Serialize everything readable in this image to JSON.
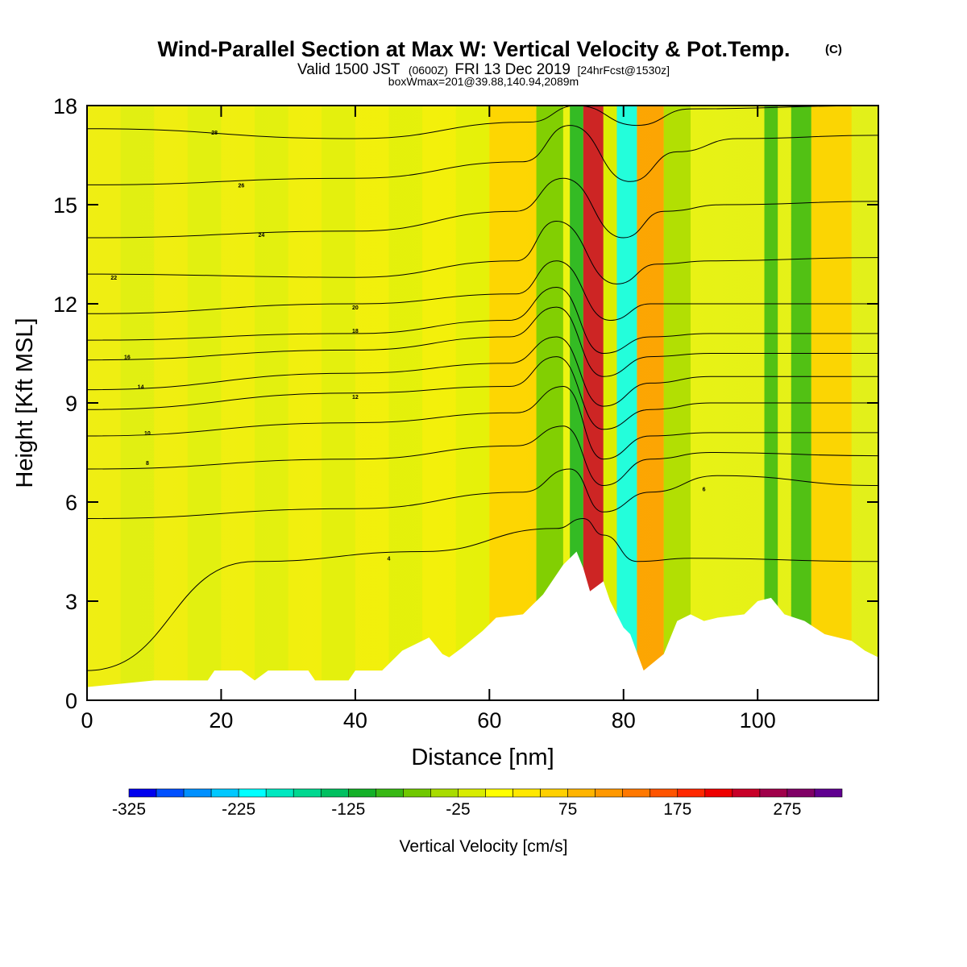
{
  "header": {
    "title": "Wind-Parallel Section at Max W: Vertical Velocity & Pot.Temp.",
    "copyright": "(C)",
    "subtitle_a": "Valid 1500 JST",
    "subtitle_b": "(0600Z)",
    "subtitle_c": "FRI 13 Dec 2019",
    "subtitle_d": "[24hrFcst@1530z]",
    "subtitle_line3": "boxWmax=201@39.88,140.94,2089m"
  },
  "chart_data": {
    "type": "heatmap",
    "title": "Wind-Parallel Section at Max W: Vertical Velocity & Pot.Temp.",
    "xlabel": "Distance [nm]",
    "ylabel": "Height [Kft MSL]",
    "xlim": [
      0,
      118
    ],
    "ylim": [
      0,
      18
    ],
    "x_ticks": [
      "0",
      "20",
      "40",
      "60",
      "80",
      "100"
    ],
    "y_ticks": [
      "0",
      "3",
      "6",
      "9",
      "12",
      "15",
      "18"
    ],
    "x_tick_values": [
      0,
      20,
      40,
      60,
      80,
      100
    ],
    "y_tick_values": [
      0,
      3,
      6,
      9,
      12,
      15,
      18
    ],
    "colorbar": {
      "label": "Vertical Velocity [cm/s]",
      "min": -325,
      "max": 325,
      "step": 25,
      "tick_labels": [
        "-325",
        "-225",
        "-125",
        "-25",
        "75",
        "175",
        "275"
      ],
      "tick_values": [
        -325,
        -225,
        -125,
        -25,
        75,
        175,
        275
      ],
      "colors": [
        "#0000ee",
        "#0050ff",
        "#0090ff",
        "#00c8ff",
        "#00ffff",
        "#00e8c0",
        "#00d890",
        "#00c060",
        "#14b028",
        "#38b814",
        "#70c800",
        "#a8dc00",
        "#d8ec00",
        "#ffff00",
        "#ffe800",
        "#ffd000",
        "#ffb400",
        "#ff9800",
        "#ff7800",
        "#ff5400",
        "#ff2800",
        "#ee0000",
        "#c80028",
        "#a0004a",
        "#800066",
        "#600090"
      ]
    },
    "terrain": [
      [
        0,
        0.4
      ],
      [
        10,
        0.6
      ],
      [
        18,
        0.6
      ],
      [
        19,
        0.9
      ],
      [
        23,
        0.9
      ],
      [
        25,
        0.6
      ],
      [
        27,
        0.9
      ],
      [
        33,
        0.9
      ],
      [
        34,
        0.6
      ],
      [
        39,
        0.6
      ],
      [
        40,
        0.9
      ],
      [
        44,
        0.9
      ],
      [
        47,
        1.5
      ],
      [
        48,
        1.6
      ],
      [
        51,
        1.9
      ],
      [
        53,
        1.4
      ],
      [
        54,
        1.3
      ],
      [
        56,
        1.6
      ],
      [
        59,
        2.1
      ],
      [
        61,
        2.5
      ],
      [
        65,
        2.6
      ],
      [
        68,
        3.2
      ],
      [
        71,
        4.1
      ],
      [
        73,
        4.5
      ],
      [
        74,
        4.0
      ],
      [
        75,
        3.3
      ],
      [
        77,
        3.6
      ],
      [
        78,
        3.0
      ],
      [
        79,
        2.6
      ],
      [
        80,
        2.2
      ],
      [
        81,
        2.0
      ],
      [
        83,
        0.9
      ],
      [
        86,
        1.4
      ],
      [
        88,
        2.4
      ],
      [
        90,
        2.6
      ],
      [
        92,
        2.4
      ],
      [
        94,
        2.5
      ],
      [
        98,
        2.6
      ],
      [
        100,
        3.0
      ],
      [
        102,
        3.1
      ],
      [
        104,
        2.6
      ],
      [
        107,
        2.4
      ],
      [
        110,
        2.0
      ],
      [
        114,
        1.8
      ],
      [
        116,
        1.5
      ],
      [
        118,
        1.3
      ]
    ],
    "theta_contours": [
      {
        "label": "4",
        "levels": [
          [
            0,
            0.9
          ],
          [
            25,
            4.2
          ],
          [
            50,
            4.5
          ],
          [
            70,
            5.2
          ],
          [
            74,
            5.5
          ],
          [
            77,
            5.0
          ],
          [
            82,
            4.2
          ],
          [
            90,
            4.3
          ],
          [
            118,
            4.2
          ]
        ],
        "label_at": [
          45,
          4.3
        ]
      },
      {
        "label": "6",
        "levels": [
          [
            0,
            5.5
          ],
          [
            40,
            5.8
          ],
          [
            65,
            6.3
          ],
          [
            72,
            7.0
          ],
          [
            77,
            5.7
          ],
          [
            84,
            6.3
          ],
          [
            94,
            6.8
          ],
          [
            118,
            6.5
          ]
        ],
        "label_at": [
          92,
          6.4
        ]
      },
      {
        "label": "8",
        "levels": [
          [
            0,
            7.0
          ],
          [
            40,
            7.3
          ],
          [
            64,
            7.7
          ],
          [
            71,
            8.3
          ],
          [
            77,
            6.5
          ],
          [
            84,
            7.3
          ],
          [
            93,
            7.5
          ],
          [
            118,
            7.4
          ]
        ],
        "label_at": [
          9,
          7.2
        ]
      },
      {
        "label": "10",
        "levels": [
          [
            0,
            8.0
          ],
          [
            40,
            8.4
          ],
          [
            64,
            8.7
          ],
          [
            71,
            9.5
          ],
          [
            77,
            7.3
          ],
          [
            84,
            8.0
          ],
          [
            93,
            8.1
          ],
          [
            118,
            8.1
          ]
        ],
        "label_at": [
          9,
          8.1
        ]
      },
      {
        "label": "12",
        "levels": [
          [
            0,
            8.8
          ],
          [
            40,
            9.3
          ],
          [
            63,
            9.5
          ],
          [
            70,
            10.4
          ],
          [
            77,
            8.2
          ],
          [
            84,
            8.8
          ],
          [
            93,
            9.0
          ],
          [
            118,
            9.0
          ]
        ],
        "label_at": [
          40,
          9.2
        ]
      },
      {
        "label": "14",
        "levels": [
          [
            0,
            9.4
          ],
          [
            40,
            9.9
          ],
          [
            63,
            10.2
          ],
          [
            70,
            11.0
          ],
          [
            77,
            8.9
          ],
          [
            84,
            9.6
          ],
          [
            93,
            9.8
          ],
          [
            118,
            9.8
          ]
        ],
        "label_at": [
          8,
          9.5
        ]
      },
      {
        "label": "16",
        "levels": [
          [
            0,
            10.3
          ],
          [
            40,
            10.6
          ],
          [
            63,
            11.0
          ],
          [
            70,
            11.9
          ],
          [
            77,
            9.8
          ],
          [
            84,
            10.4
          ],
          [
            93,
            10.5
          ],
          [
            118,
            10.5
          ]
        ],
        "label_at": [
          6,
          10.4
        ]
      },
      {
        "label": "18",
        "levels": [
          [
            0,
            10.9
          ],
          [
            40,
            11.1
          ],
          [
            63,
            11.5
          ],
          [
            70,
            12.5
          ],
          [
            77,
            10.5
          ],
          [
            84,
            11.0
          ],
          [
            93,
            11.1
          ],
          [
            118,
            11.1
          ]
        ],
        "label_at": [
          40,
          11.2
        ]
      },
      {
        "label": "20",
        "levels": [
          [
            0,
            11.7
          ],
          [
            40,
            12.0
          ],
          [
            64,
            12.3
          ],
          [
            70,
            13.3
          ],
          [
            78,
            11.5
          ],
          [
            84,
            12.0
          ],
          [
            93,
            12.0
          ],
          [
            118,
            12.0
          ]
        ],
        "label_at": [
          40,
          11.9
        ]
      },
      {
        "label": "22",
        "levels": [
          [
            0,
            12.9
          ],
          [
            40,
            12.8
          ],
          [
            64,
            13.3
          ],
          [
            70,
            14.5
          ],
          [
            79,
            12.6
          ],
          [
            85,
            13.2
          ],
          [
            93,
            13.3
          ],
          [
            118,
            13.4
          ]
        ],
        "label_at": [
          4,
          12.8
        ]
      },
      {
        "label": "24",
        "levels": [
          [
            0,
            14.0
          ],
          [
            40,
            14.2
          ],
          [
            64,
            14.8
          ],
          [
            71,
            15.8
          ],
          [
            80,
            14.0
          ],
          [
            86,
            14.8
          ],
          [
            95,
            15.0
          ],
          [
            118,
            15.1
          ]
        ],
        "label_at": [
          26,
          14.1
        ]
      },
      {
        "label": "26",
        "levels": [
          [
            0,
            15.6
          ],
          [
            40,
            15.8
          ],
          [
            65,
            16.3
          ],
          [
            72,
            17.4
          ],
          [
            81,
            15.7
          ],
          [
            88,
            16.6
          ],
          [
            97,
            17.0
          ],
          [
            118,
            17.1
          ]
        ],
        "label_at": [
          23,
          15.6
        ]
      },
      {
        "label": "28",
        "levels": [
          [
            0,
            17.3
          ],
          [
            40,
            17.0
          ],
          [
            66,
            17.5
          ],
          [
            73,
            18.0
          ],
          [
            82,
            17.4
          ],
          [
            90,
            17.9
          ],
          [
            118,
            18.0
          ]
        ],
        "label_at": [
          19,
          17.2
        ]
      }
    ],
    "w_bands": [
      {
        "x": [
          0,
          60
        ],
        "w": [
          -10,
          40
        ]
      },
      {
        "x": [
          60,
          67
        ],
        "w": [
          60
        ]
      },
      {
        "x": [
          67,
          71
        ],
        "w": [
          -75
        ]
      },
      {
        "x": [
          72,
          74
        ],
        "w": [
          -125
        ]
      },
      {
        "x": [
          74,
          77
        ],
        "w": [
          225
        ]
      },
      {
        "x": [
          77,
          79
        ],
        "w": [
          -25
        ]
      },
      {
        "x": [
          79,
          82
        ],
        "w": [
          -225
        ]
      },
      {
        "x": [
          82,
          86
        ],
        "w": [
          100
        ]
      },
      {
        "x": [
          86,
          90
        ],
        "w": [
          -50
        ]
      },
      {
        "x": [
          101,
          103
        ],
        "w": [
          -100
        ]
      },
      {
        "x": [
          105,
          108
        ],
        "w": [
          -100
        ]
      },
      {
        "x": [
          108,
          114
        ],
        "w": [
          60
        ]
      }
    ]
  }
}
